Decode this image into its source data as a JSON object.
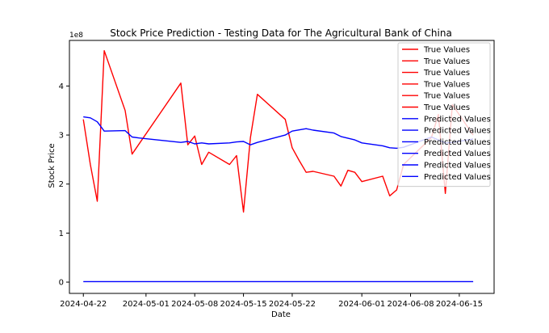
{
  "chart_data": {
    "type": "line",
    "title": "Stock Price Prediction - Testing Data for The Agricultural Bank of China",
    "xlabel": "Date",
    "ylabel": "Stock Price",
    "y_offset_label": "1e8",
    "ylim": [
      -0.23,
      4.93
    ],
    "xlim": [
      "2024-04-20",
      "2024-06-20"
    ],
    "x_ticks": [
      "2024-04-22",
      "2024-05-01",
      "2024-05-08",
      "2024-05-15",
      "2024-05-22",
      "2024-06-01",
      "2024-06-08",
      "2024-06-15"
    ],
    "y_ticks": [
      0,
      1,
      2,
      3,
      4
    ],
    "grid": false,
    "legend_position": "top-right",
    "legend_entries": [
      {
        "name": "True Values",
        "color": "#ff0000"
      },
      {
        "name": "True Values",
        "color": "#ff0000"
      },
      {
        "name": "True Values",
        "color": "#ff0000"
      },
      {
        "name": "True Values",
        "color": "#ff0000"
      },
      {
        "name": "True Values",
        "color": "#ff0000"
      },
      {
        "name": "True Values",
        "color": "#ff0000"
      },
      {
        "name": "Predicted Values",
        "color": "#0000ff"
      },
      {
        "name": "Predicted Values",
        "color": "#0000ff"
      },
      {
        "name": "Predicted Values",
        "color": "#0000ff"
      },
      {
        "name": "Predicted Values",
        "color": "#0000ff"
      },
      {
        "name": "Predicted Values",
        "color": "#0000ff"
      },
      {
        "name": "Predicted Values",
        "color": "#0000ff"
      }
    ],
    "series": [
      {
        "color": "#ff0000",
        "points": [
          [
            "2024-04-22",
            3.32
          ],
          [
            "2024-04-23",
            2.4
          ],
          [
            "2024-04-24",
            1.65
          ],
          [
            "2024-04-25",
            4.72
          ],
          [
            "2024-04-28",
            3.5
          ],
          [
            "2024-04-29",
            2.61
          ],
          [
            "2024-05-06",
            4.06
          ],
          [
            "2024-05-07",
            2.8
          ],
          [
            "2024-05-08",
            2.98
          ],
          [
            "2024-05-09",
            2.4
          ],
          [
            "2024-05-10",
            2.65
          ],
          [
            "2024-05-13",
            2.4
          ],
          [
            "2024-05-14",
            2.58
          ],
          [
            "2024-05-15",
            1.43
          ],
          [
            "2024-05-16",
            2.95
          ],
          [
            "2024-05-17",
            3.83
          ],
          [
            "2024-05-21",
            3.32
          ],
          [
            "2024-05-22",
            2.74
          ],
          [
            "2024-05-23",
            2.48
          ],
          [
            "2024-05-24",
            2.24
          ],
          [
            "2024-05-25",
            2.26
          ],
          [
            "2024-05-28",
            2.16
          ],
          [
            "2024-05-29",
            1.96
          ],
          [
            "2024-05-30",
            2.28
          ],
          [
            "2024-05-31",
            2.24
          ],
          [
            "2024-06-01",
            2.05
          ],
          [
            "2024-06-04",
            2.16
          ],
          [
            "2024-06-05",
            1.76
          ],
          [
            "2024-06-06",
            1.88
          ],
          [
            "2024-06-07",
            2.4
          ],
          [
            "2024-06-11",
            2.95
          ],
          [
            "2024-06-12",
            3.42
          ],
          [
            "2024-06-13",
            1.81
          ],
          [
            "2024-06-14",
            3.62
          ],
          [
            "2024-06-17",
            3.0
          ]
        ]
      },
      {
        "color": "#0000ff",
        "points": [
          [
            "2024-04-22",
            3.37
          ],
          [
            "2024-04-23",
            3.35
          ],
          [
            "2024-04-24",
            3.27
          ],
          [
            "2024-04-25",
            3.08
          ],
          [
            "2024-04-28",
            3.09
          ],
          [
            "2024-04-29",
            2.96
          ],
          [
            "2024-04-30",
            2.94
          ],
          [
            "2024-05-06",
            2.85
          ],
          [
            "2024-05-07",
            2.87
          ],
          [
            "2024-05-08",
            2.82
          ],
          [
            "2024-05-09",
            2.84
          ],
          [
            "2024-05-10",
            2.82
          ],
          [
            "2024-05-13",
            2.84
          ],
          [
            "2024-05-14",
            2.86
          ],
          [
            "2024-05-15",
            2.87
          ],
          [
            "2024-05-16",
            2.8
          ],
          [
            "2024-05-17",
            2.85
          ],
          [
            "2024-05-21",
            3.0
          ],
          [
            "2024-05-22",
            3.08
          ],
          [
            "2024-05-24",
            3.13
          ],
          [
            "2024-05-25",
            3.1
          ],
          [
            "2024-05-28",
            3.04
          ],
          [
            "2024-05-29",
            2.97
          ],
          [
            "2024-05-31",
            2.9
          ],
          [
            "2024-06-01",
            2.84
          ],
          [
            "2024-06-04",
            2.78
          ],
          [
            "2024-06-05",
            2.74
          ],
          [
            "2024-06-06",
            2.73
          ],
          [
            "2024-06-07",
            2.75
          ],
          [
            "2024-06-11",
            2.96
          ],
          [
            "2024-06-12",
            2.9
          ],
          [
            "2024-06-13",
            2.84
          ],
          [
            "2024-06-14",
            2.85
          ],
          [
            "2024-06-17",
            2.92
          ]
        ]
      },
      {
        "color": "#0000ff",
        "points": [
          [
            "2024-04-22",
            0.01
          ],
          [
            "2024-06-17",
            0.01
          ]
        ]
      }
    ]
  }
}
